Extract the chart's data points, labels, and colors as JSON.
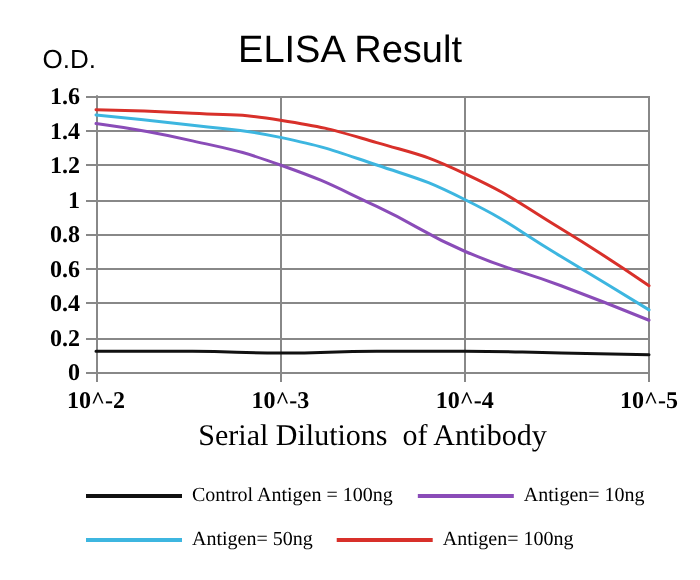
{
  "chart_data": {
    "type": "line",
    "title": "ELISA Result",
    "ylabel": "O.D.",
    "xlabel": "Serial Dilutions  of Antibody",
    "x": [
      0.01,
      0.003,
      0.001,
      0.0003,
      0.0001,
      3e-05,
      1e-05
    ],
    "series": [
      {
        "name": "Control Antigen = 100ng",
        "color": "#111111",
        "values": [
          0.12,
          0.12,
          0.11,
          0.12,
          0.12,
          0.11,
          0.1
        ]
      },
      {
        "name": "Antigen= 10ng",
        "color": "#8a4cb8",
        "values": [
          1.44,
          1.34,
          1.2,
          0.96,
          0.7,
          0.5,
          0.3
        ]
      },
      {
        "name": "Antigen= 50ng",
        "color": "#3db6e0",
        "values": [
          1.49,
          1.43,
          1.36,
          1.2,
          1.0,
          0.67,
          0.36
        ]
      },
      {
        "name": "Antigen= 100ng",
        "color": "#d8302a",
        "values": [
          1.52,
          1.5,
          1.46,
          1.33,
          1.15,
          0.83,
          0.5
        ]
      }
    ],
    "xlim": [
      0.01,
      1e-05
    ],
    "log": "x",
    "xticks": [
      {
        "value": 0.01,
        "label": "10^-2"
      },
      {
        "value": 0.001,
        "label": "10^-3"
      },
      {
        "value": 0.0001,
        "label": "10^-4"
      },
      {
        "value": 1e-05,
        "label": "10^-5"
      }
    ],
    "ylim": [
      0,
      1.6
    ],
    "yticks": [
      0,
      0.2,
      0.4,
      0.6,
      0.8,
      1,
      1.2,
      1.4,
      1.6
    ],
    "grid": true,
    "legend": "bottom",
    "marker": "none",
    "line_style": "solid"
  }
}
